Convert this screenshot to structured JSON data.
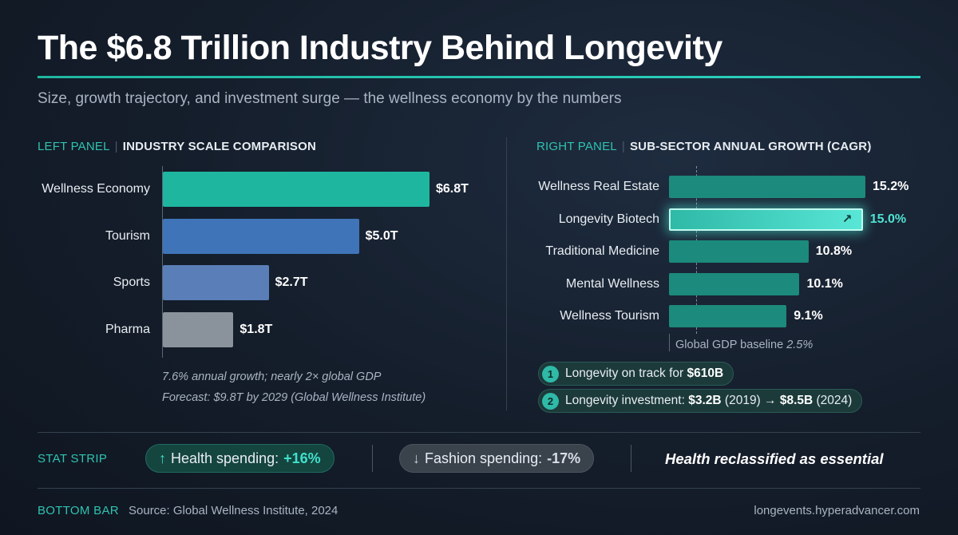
{
  "header": {
    "title": "The $6.8 Trillion Industry Behind Longevity",
    "subtitle": "Size, growth trajectory, and investment surge — the wellness economy by the numbers"
  },
  "left_panel": {
    "tag": "LEFT PANEL",
    "heading": "INDUSTRY SCALE COMPARISON",
    "note_1": "7.6% annual growth; nearly 2× global GDP",
    "note_2": "Forecast: $9.8T by 2029 (Global Wellness Institute)"
  },
  "right_panel": {
    "tag": "RIGHT PANEL",
    "heading": "SUB-SECTOR ANNUAL GROWTH (CAGR)",
    "baseline_label": "Global GDP baseline",
    "baseline_value": "2.5%",
    "callouts": [
      {
        "num": "1",
        "text": "Longevity on track for ",
        "bold": "$610B"
      },
      {
        "num": "2",
        "text": "Longevity investment: ",
        "bold_a": "$3.2B",
        "mid": " (2019) → ",
        "bold_b": "$8.5B",
        "end": " (2024)"
      }
    ]
  },
  "chart_data": [
    {
      "type": "bar",
      "orientation": "horizontal",
      "title": "INDUSTRY SCALE COMPARISON",
      "categories": [
        "Wellness Economy",
        "Tourism",
        "Sports",
        "Pharma"
      ],
      "values": [
        6.8,
        5.0,
        2.7,
        1.8
      ],
      "value_labels": [
        "$6.8T",
        "$5.0T",
        "$2.7T",
        "$1.8T"
      ],
      "unit": "trillion USD",
      "colors": [
        "#1fb6a0",
        "#3f74b8",
        "#5a7fb8",
        "#8a929c"
      ],
      "xlim": [
        0,
        6.8
      ]
    },
    {
      "type": "bar",
      "orientation": "horizontal",
      "title": "SUB-SECTOR ANNUAL GROWTH (CAGR)",
      "categories": [
        "Wellness Real Estate",
        "Longevity Biotech",
        "Traditional Medicine",
        "Mental Wellness",
        "Wellness Tourism"
      ],
      "values": [
        15.2,
        15.0,
        10.8,
        10.1,
        9.1
      ],
      "value_labels": [
        "15.2%",
        "15.0%",
        "10.8%",
        "10.1%",
        "9.1%"
      ],
      "highlight": "Longevity Biotech",
      "baseline": 2.5,
      "xlim": [
        0,
        15.2
      ]
    }
  ],
  "stat_strip": {
    "label": "STAT STRIP",
    "up_arrow": "↑",
    "up_text": "Health spending:",
    "up_value": "+16%",
    "down_arrow": "↓",
    "down_text": "Fashion spending:",
    "down_value": "-17%",
    "statement": "Health reclassified as essential"
  },
  "bottom_bar": {
    "label": "BOTTOM BAR",
    "source": "Source: Global Wellness Institute, 2024",
    "site": "longevents.hyperadvancer.com"
  },
  "colors": {
    "accent": "#2fc3b0",
    "background": "#141d2a"
  }
}
